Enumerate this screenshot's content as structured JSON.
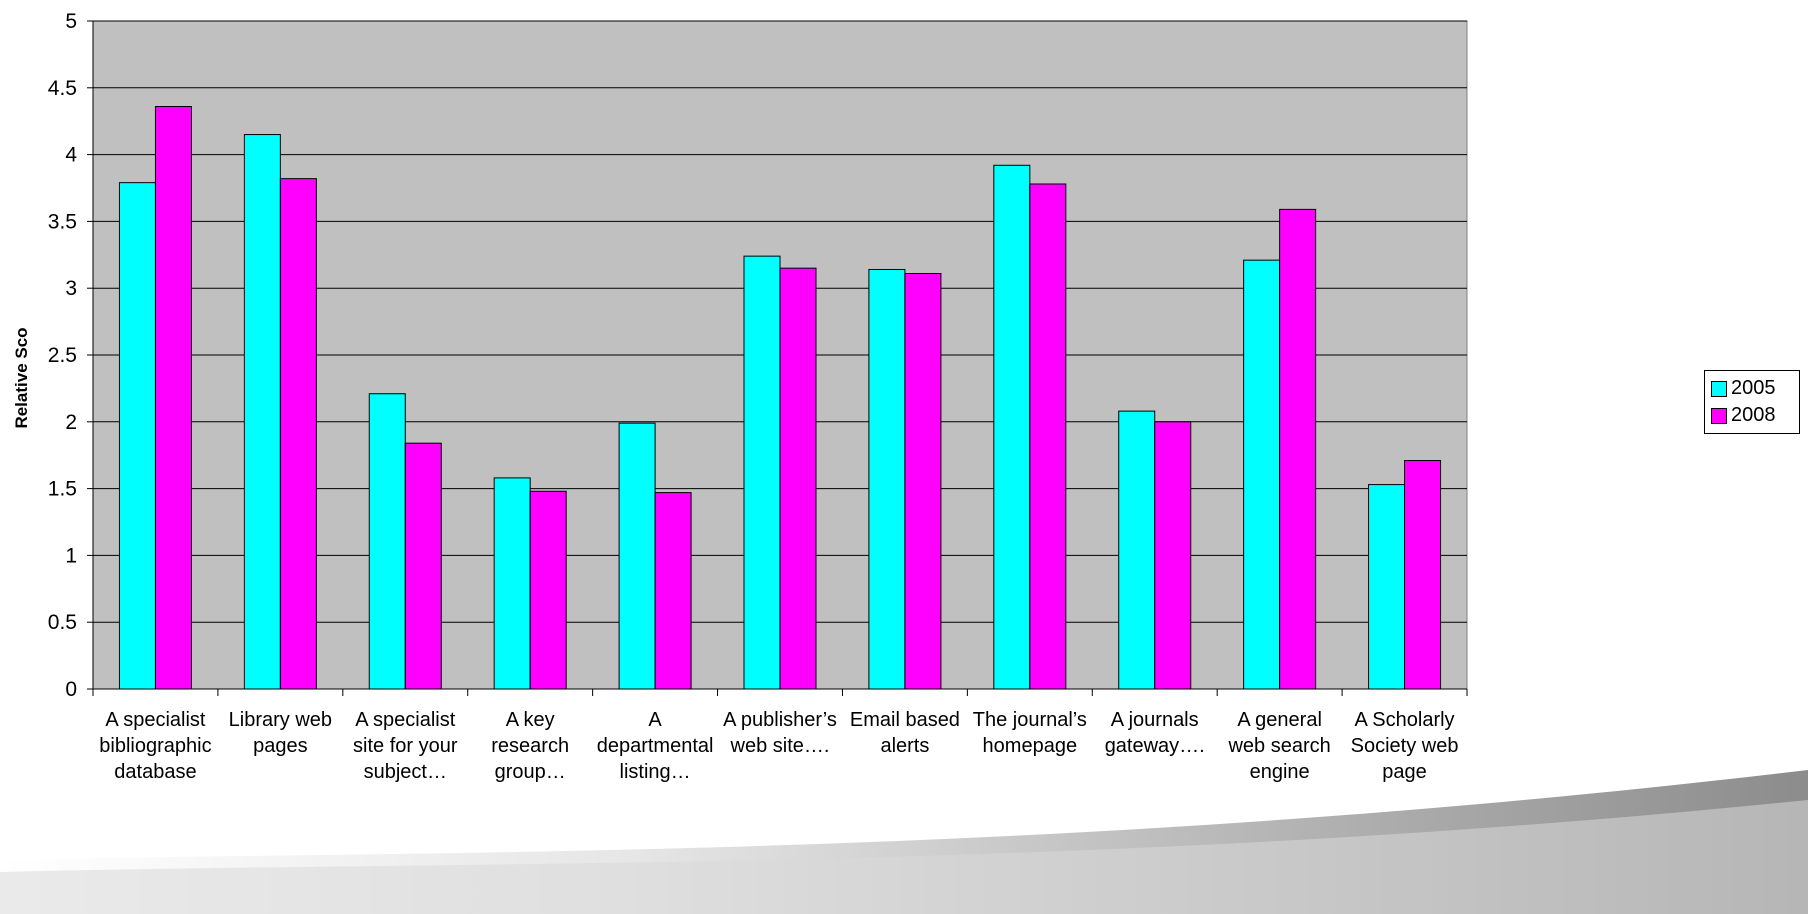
{
  "chart_data": {
    "type": "bar",
    "ylabel": "Relative Sco",
    "xlabel": "",
    "ylim": [
      0,
      5
    ],
    "yticks": [
      "0",
      "0.5",
      "1",
      "1.5",
      "2",
      "2.5",
      "3",
      "3.5",
      "4",
      "4.5",
      "5"
    ],
    "grid": true,
    "legend_position": "right",
    "plot_background": "#c0c0c0",
    "categories": [
      [
        "A specialist",
        "bibliographic",
        "database"
      ],
      [
        "Library web",
        "pages"
      ],
      [
        "A specialist",
        "site for your",
        "subject…"
      ],
      [
        "A key",
        "research",
        "group…"
      ],
      [
        "A",
        "departmental",
        "listing…"
      ],
      [
        "A publisher’s",
        "web site…."
      ],
      [
        "Email based",
        "alerts"
      ],
      [
        "The journal’s",
        "homepage"
      ],
      [
        "A journals",
        "gateway…."
      ],
      [
        "A general",
        "web search",
        "engine"
      ],
      [
        "A Scholarly",
        "Society web",
        "page"
      ]
    ],
    "series": [
      {
        "name": "2005",
        "color": "#00ffff",
        "values": [
          3.79,
          4.15,
          2.21,
          1.58,
          1.99,
          3.24,
          3.14,
          3.92,
          2.08,
          3.21,
          1.53
        ]
      },
      {
        "name": "2008",
        "color": "#ff00ff",
        "values": [
          4.36,
          3.82,
          1.84,
          1.48,
          1.47,
          3.15,
          3.11,
          3.78,
          2.0,
          3.59,
          1.71
        ]
      }
    ]
  }
}
